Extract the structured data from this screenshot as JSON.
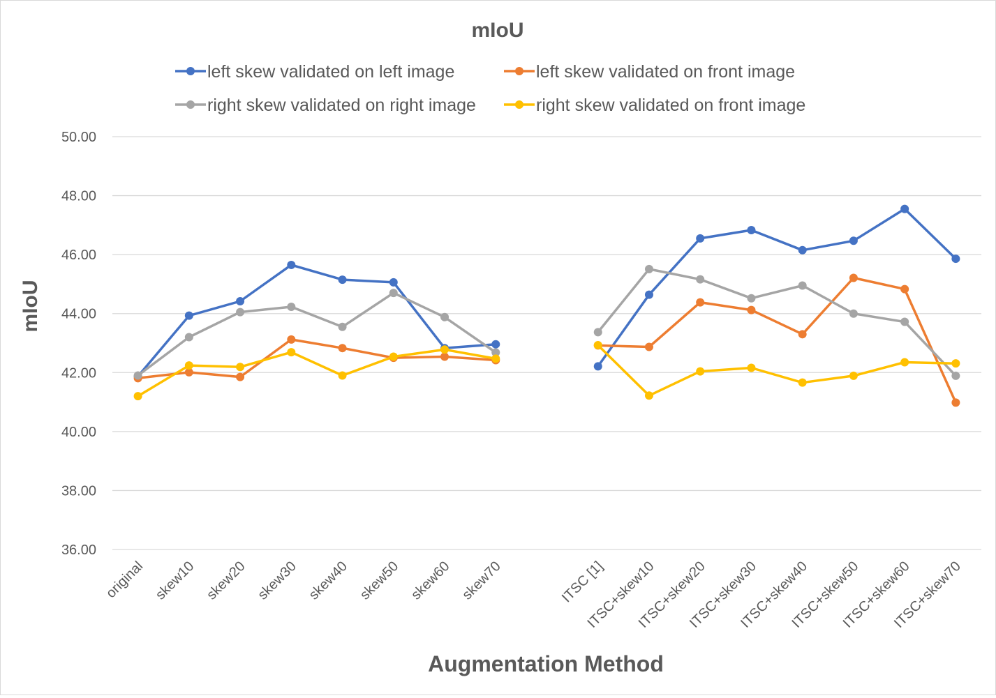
{
  "chart_data": {
    "type": "line",
    "title": "mIoU",
    "xlabel": "Augmentation Method",
    "ylabel": "mIoU",
    "ylim": [
      36,
      50
    ],
    "yticks": [
      "36.00",
      "38.00",
      "40.00",
      "42.00",
      "44.00",
      "46.00",
      "48.00",
      "50.00"
    ],
    "grid": true,
    "legend_position": "top",
    "categories": [
      "original",
      "skew10",
      "skew20",
      "skew30",
      "skew40",
      "skew50",
      "skew60",
      "skew70",
      "",
      "ITSC [1]",
      "ITSC+skew10",
      "ITSC+skew20",
      "ITSC+skew30",
      "ITSC+skew40",
      "ITSC+skew50",
      "ITSC+skew60",
      "ITSC+skew70"
    ],
    "series": [
      {
        "name": "left skew validated on left image",
        "color": "#4472c4",
        "values": [
          41.87,
          43.93,
          44.42,
          45.65,
          45.15,
          45.06,
          42.83,
          42.96,
          null,
          42.21,
          44.64,
          46.55,
          46.83,
          46.15,
          46.47,
          47.55,
          45.86
        ]
      },
      {
        "name": "left skew validated on front image",
        "color": "#ed7d31",
        "values": [
          41.81,
          42.01,
          41.85,
          43.12,
          42.83,
          42.5,
          42.54,
          42.42,
          null,
          42.92,
          42.87,
          44.38,
          44.12,
          43.3,
          45.21,
          44.83,
          40.98
        ]
      },
      {
        "name": "right skew validated on right image",
        "color": "#a5a5a5",
        "values": [
          41.9,
          43.2,
          44.05,
          44.23,
          43.55,
          44.7,
          43.88,
          42.68,
          null,
          43.37,
          45.51,
          45.16,
          44.52,
          44.95,
          44.0,
          43.72,
          41.89
        ]
      },
      {
        "name": "right skew validated on front image",
        "color": "#ffc000",
        "values": [
          41.2,
          42.24,
          42.19,
          42.69,
          41.9,
          42.54,
          42.78,
          42.47,
          null,
          42.93,
          41.22,
          42.04,
          42.16,
          41.66,
          41.89,
          42.35,
          42.31
        ]
      }
    ]
  }
}
